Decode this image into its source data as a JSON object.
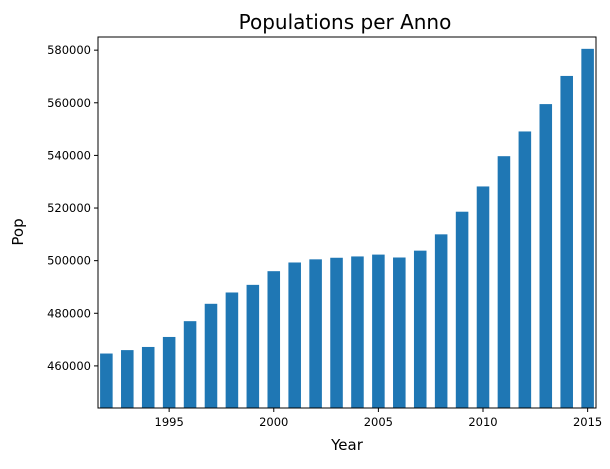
{
  "chart_data": {
    "type": "bar",
    "title": "Populations per Anno",
    "xlabel": "Year",
    "ylabel": "Pop",
    "categories": [
      1992,
      1993,
      1994,
      1995,
      1996,
      1997,
      1998,
      1999,
      2000,
      2001,
      2002,
      2003,
      2004,
      2005,
      2006,
      2007,
      2008,
      2009,
      2010,
      2011,
      2012,
      2013,
      2014,
      2015
    ],
    "values": [
      464700,
      466000,
      467200,
      471000,
      477000,
      483600,
      487900,
      490800,
      496000,
      499300,
      500500,
      501100,
      501600,
      502300,
      501200,
      503800,
      510000,
      518600,
      528200,
      539700,
      549100,
      559500,
      570200,
      580500
    ],
    "ylim": [
      444000,
      585000
    ],
    "xlim": [
      1991.6,
      1995.4
    ],
    "xticks": [
      "1995",
      "2000",
      "2005",
      "2010",
      "2015"
    ],
    "yticks": [
      "460000",
      "480000",
      "500000",
      "520000",
      "540000",
      "560000",
      "580000"
    ],
    "bar_color": "#1f77b4",
    "grid": false,
    "legend": "none"
  }
}
